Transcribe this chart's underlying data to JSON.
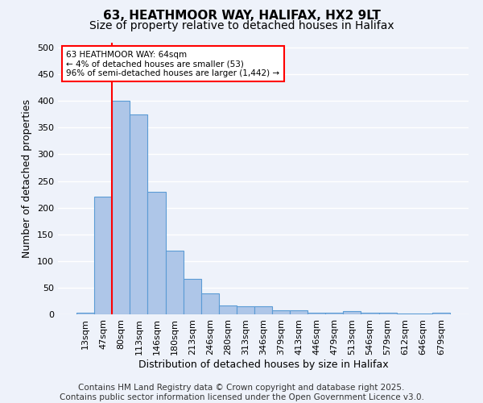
{
  "title1": "63, HEATHMOOR WAY, HALIFAX, HX2 9LT",
  "title2": "Size of property relative to detached houses in Halifax",
  "xlabel": "Distribution of detached houses by size in Halifax",
  "ylabel": "Number of detached properties",
  "categories": [
    "13sqm",
    "47sqm",
    "80sqm",
    "113sqm",
    "146sqm",
    "180sqm",
    "213sqm",
    "246sqm",
    "280sqm",
    "313sqm",
    "346sqm",
    "379sqm",
    "413sqm",
    "446sqm",
    "479sqm",
    "513sqm",
    "546sqm",
    "579sqm",
    "612sqm",
    "646sqm",
    "679sqm"
  ],
  "values": [
    3,
    220,
    400,
    375,
    230,
    120,
    67,
    40,
    17,
    15,
    15,
    7,
    7,
    3,
    3,
    6,
    3,
    3,
    1,
    1,
    3
  ],
  "bar_color": "#aec6e8",
  "bar_edge_color": "#5b9bd5",
  "red_line_x": 1.5,
  "annotation_text": "63 HEATHMOOR WAY: 64sqm\n← 4% of detached houses are smaller (53)\n96% of semi-detached houses are larger (1,442) →",
  "annotation_box_color": "white",
  "annotation_edge_color": "red",
  "red_line_color": "red",
  "ylim": [
    0,
    510
  ],
  "yticks": [
    0,
    50,
    100,
    150,
    200,
    250,
    300,
    350,
    400,
    450,
    500
  ],
  "footer1": "Contains HM Land Registry data © Crown copyright and database right 2025.",
  "footer2": "Contains public sector information licensed under the Open Government Licence v3.0.",
  "background_color": "#eef2fa",
  "grid_color": "#ffffff",
  "title_fontsize": 11,
  "subtitle_fontsize": 10,
  "axis_label_fontsize": 9,
  "tick_fontsize": 8,
  "footer_fontsize": 7.5
}
